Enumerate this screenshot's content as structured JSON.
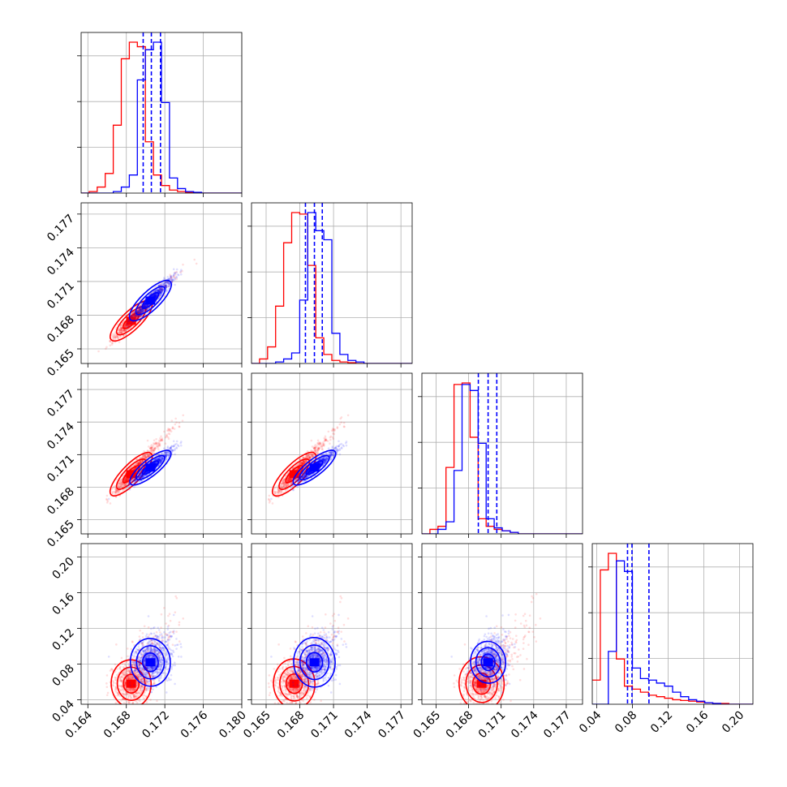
{
  "chart_data": {
    "type": "corner",
    "n_params": 4,
    "grid": true,
    "colors": {
      "series_a": "#ff0000",
      "series_b": "#0000ff"
    },
    "params": [
      {
        "range": [
          0.1633,
          0.18
        ],
        "ticks": [
          0.164,
          0.168,
          0.172,
          0.176,
          0.18
        ],
        "ticklabels": [
          "0.164",
          "0.168",
          "0.172",
          "0.176",
          "0.180"
        ]
      },
      {
        "range": [
          0.1637,
          0.178
        ],
        "ticks": [
          0.165,
          0.168,
          0.171,
          0.174,
          0.177
        ],
        "ticklabels": [
          "0.165",
          "0.168",
          "0.171",
          "0.174",
          "0.177"
        ]
      },
      {
        "range": [
          0.1637,
          0.1785
        ],
        "ticks": [
          0.165,
          0.168,
          0.171,
          0.174,
          0.177
        ],
        "ticklabels": [
          "0.165",
          "0.168",
          "0.171",
          "0.174",
          "0.177"
        ]
      },
      {
        "range": [
          0.035,
          0.215
        ],
        "ticks": [
          0.04,
          0.08,
          0.12,
          0.16,
          0.2
        ],
        "ticklabels": [
          "0.04",
          "0.08",
          "0.12",
          "0.16",
          "0.20"
        ]
      }
    ],
    "series": [
      {
        "color": "#ff0000",
        "histograms": [
          [
            0.0,
            0.01,
            0.04,
            0.13,
            0.45,
            0.89,
            1.0,
            0.97,
            0.34,
            0.12,
            0.05,
            0.02,
            0.01,
            0.005,
            0.0,
            0.0,
            0.0,
            0.0,
            0.0,
            0.0
          ],
          [
            0.0,
            0.03,
            0.11,
            0.38,
            0.8,
            1.0,
            0.99,
            0.65,
            0.17,
            0.06,
            0.02,
            0.01,
            0.005,
            0.0,
            0.0,
            0.0,
            0.0,
            0.0,
            0.0,
            0.0
          ],
          [
            0.0,
            0.03,
            0.05,
            0.44,
            0.99,
            1.0,
            0.64,
            0.1,
            0.05,
            0.03,
            0.02,
            0.01,
            0.0,
            0.0,
            0.0,
            0.0,
            0.0,
            0.0,
            0.0,
            0.0
          ],
          [
            0.16,
            0.89,
            1.0,
            0.3,
            0.12,
            0.1,
            0.08,
            0.06,
            0.05,
            0.04,
            0.03,
            0.025,
            0.02,
            0.015,
            0.01,
            0.005,
            0.005,
            0.0,
            0.0,
            0.0
          ]
        ],
        "quantiles": [
          null,
          null,
          null,
          null
        ],
        "mean": [
          0.1685,
          0.1675,
          0.1692,
          0.058
        ],
        "sd": [
          0.0009,
          0.0008,
          0.0009,
          0.012
        ],
        "skew_tail": 0.3
      },
      {
        "color": "#0000ff",
        "histograms": [
          [
            0.0,
            0.0,
            0.0,
            0.0,
            0.01,
            0.04,
            0.12,
            0.75,
            0.95,
            1.0,
            0.6,
            0.1,
            0.03,
            0.01,
            0.005,
            0.0,
            0.0,
            0.0,
            0.0,
            0.0
          ],
          [
            0.0,
            0.0,
            0.0,
            0.01,
            0.03,
            0.07,
            0.42,
            1.0,
            0.88,
            0.82,
            0.2,
            0.06,
            0.02,
            0.01,
            0.0,
            0.0,
            0.0,
            0.0,
            0.0,
            0.0
          ],
          [
            0.0,
            0.0,
            0.03,
            0.08,
            0.42,
            0.99,
            0.95,
            0.6,
            0.1,
            0.04,
            0.02,
            0.01,
            0.0,
            0.0,
            0.0,
            0.0,
            0.0,
            0.0,
            0.0,
            0.0
          ],
          [
            0.0,
            0.0,
            0.35,
            0.95,
            0.88,
            0.24,
            0.17,
            0.16,
            0.14,
            0.12,
            0.08,
            0.05,
            0.03,
            0.02,
            0.01,
            0.005,
            0.0,
            0.0,
            0.0,
            0.0
          ]
        ],
        "quantiles": [
          [
            0.16975,
            0.1706,
            0.17155
          ],
          [
            0.1685,
            0.1693,
            0.17
          ],
          [
            0.1689,
            0.1698,
            0.1706
          ],
          [
            0.0745,
            0.0795,
            0.0985
          ]
        ],
        "mean": [
          0.1705,
          0.1693,
          0.1698,
          0.082
        ],
        "sd": [
          0.0009,
          0.0008,
          0.0007,
          0.012
        ],
        "skew_tail": 0.25
      }
    ]
  }
}
